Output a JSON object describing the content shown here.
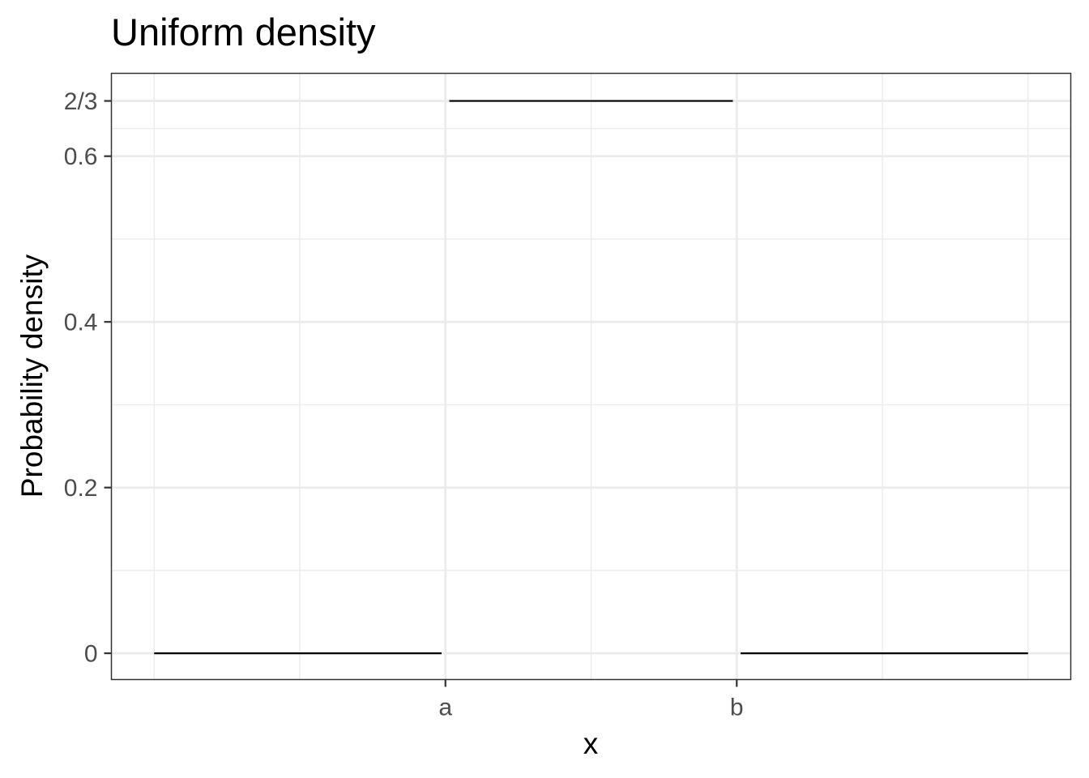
{
  "chart_data": {
    "type": "line",
    "title": "Uniform density",
    "xlabel": "x",
    "ylabel": "Probability density",
    "x_ticks": [
      {
        "value": 0,
        "label": "a"
      },
      {
        "value": 1.5,
        "label": "b"
      }
    ],
    "y_ticks": [
      {
        "value": 0,
        "label": "0"
      },
      {
        "value": 0.2,
        "label": "0.2"
      },
      {
        "value": 0.4,
        "label": "0.4"
      },
      {
        "value": 0.6,
        "label": "0.6"
      },
      {
        "value": 0.6667,
        "label": "2/3"
      }
    ],
    "x_minor_breaks": [
      -1.5,
      -0.75,
      0.75,
      2.25,
      3.0
    ],
    "y_minor_breaks": [
      0.1,
      0.3,
      0.5,
      0.6333
    ],
    "xlim": [
      -1.72,
      3.22
    ],
    "ylim": [
      -0.0317,
      0.7
    ],
    "grid": true,
    "series": [
      {
        "segments": [
          [
            [
              -1.5,
              0
            ],
            [
              -0.02,
              0
            ]
          ],
          [
            [
              0.02,
              0.6667
            ],
            [
              1.48,
              0.6667
            ]
          ],
          [
            [
              1.52,
              0
            ],
            [
              3.0,
              0
            ]
          ]
        ],
        "color": "#000000"
      }
    ],
    "colors": {
      "line": "#000000",
      "grid_major": "#ebebeb",
      "grid_minor": "#ebebeb",
      "panel_border": "#333333",
      "tick_text": "#4d4d4d",
      "axis_ticks": "#333333"
    }
  }
}
